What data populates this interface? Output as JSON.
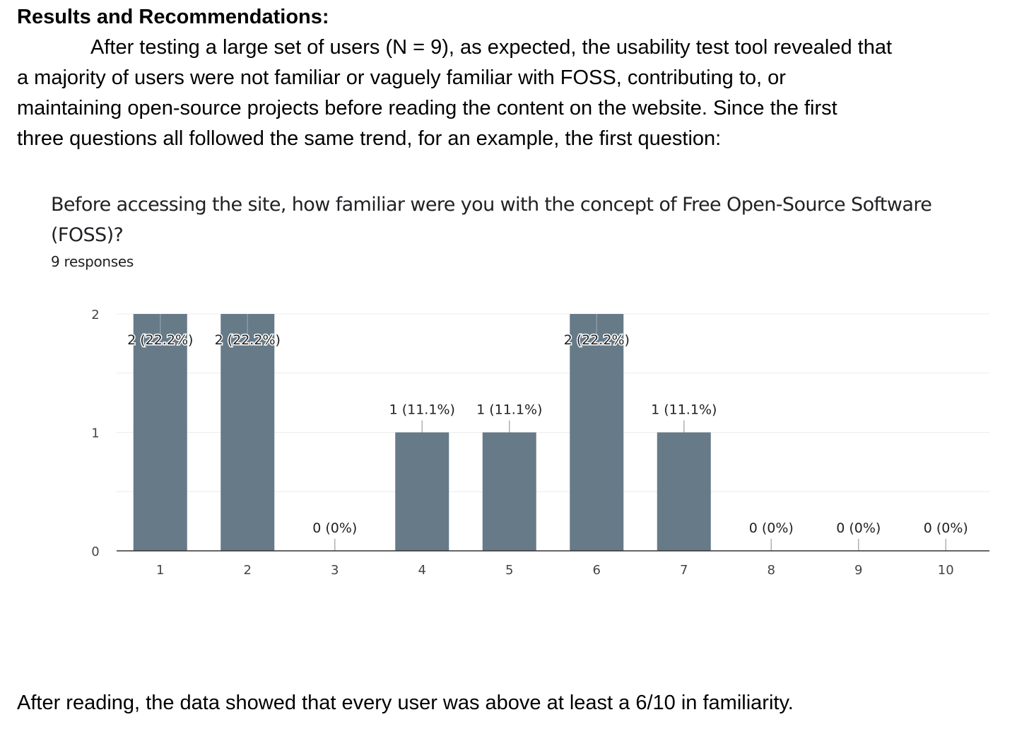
{
  "doc": {
    "heading": "Results and Recommendations:",
    "paragraph_lines": [
      "After testing a large set of users (N = 9), as expected, the usability test tool revealed that",
      "a majority of users were not familiar or vaguely familiar with FOSS, contributing to, or",
      "maintaining open-source projects before reading the content on the website. Since the first",
      "three questions all followed the same trend, for an example, the first question:"
    ],
    "footer": "After reading, the data showed that every user was above at least a 6/10 in familiarity."
  },
  "question": {
    "title_lines": [
      "Before accessing the site, how familiar were you with the concept of Free Open-Source Software",
      "(FOSS)?"
    ],
    "responses": "9 responses"
  },
  "chart_data": {
    "type": "bar",
    "categories": [
      "1",
      "2",
      "3",
      "4",
      "5",
      "6",
      "7",
      "8",
      "9",
      "10"
    ],
    "values": [
      2,
      2,
      0,
      1,
      1,
      2,
      1,
      0,
      0,
      0
    ],
    "data_labels": [
      "2 (22.2%)",
      "2 (22.2%)",
      "0 (0%)",
      "1 (11.1%)",
      "1 (11.1%)",
      "2 (22.2%)",
      "1 (11.1%)",
      "0 (0%)",
      "0 (0%)",
      "0 (0%)"
    ],
    "y_ticks": [
      "0",
      "1",
      "2"
    ],
    "ylim": [
      0,
      2
    ],
    "grid": true,
    "bar_color": "#667a88",
    "title": "",
    "xlabel": "",
    "ylabel": ""
  }
}
